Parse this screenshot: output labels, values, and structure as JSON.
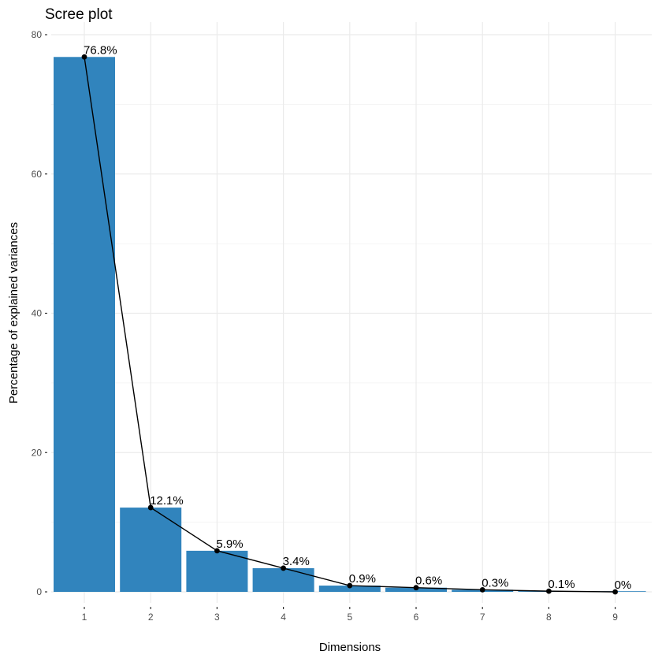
{
  "chart_data": {
    "type": "bar",
    "title": "Scree plot",
    "xlabel": "Dimensions",
    "ylabel": "Percentage of explained variances",
    "categories": [
      "1",
      "2",
      "3",
      "4",
      "5",
      "6",
      "7",
      "8",
      "9"
    ],
    "values": [
      76.8,
      12.1,
      5.9,
      3.4,
      0.9,
      0.6,
      0.3,
      0.1,
      0.0
    ],
    "data_labels": [
      "76.8%",
      "12.1%",
      "5.9%",
      "3.4%",
      "0.9%",
      "0.6%",
      "0.3%",
      "0.1%",
      "0%"
    ],
    "overlay": "line-with-points",
    "ylim": [
      0,
      80
    ],
    "yticks": [
      0,
      20,
      40,
      60,
      80
    ],
    "grid": true,
    "colors": {
      "bar": "#3184bd",
      "line": "#000000",
      "point": "#000000",
      "grid": "#ebebeb"
    }
  }
}
